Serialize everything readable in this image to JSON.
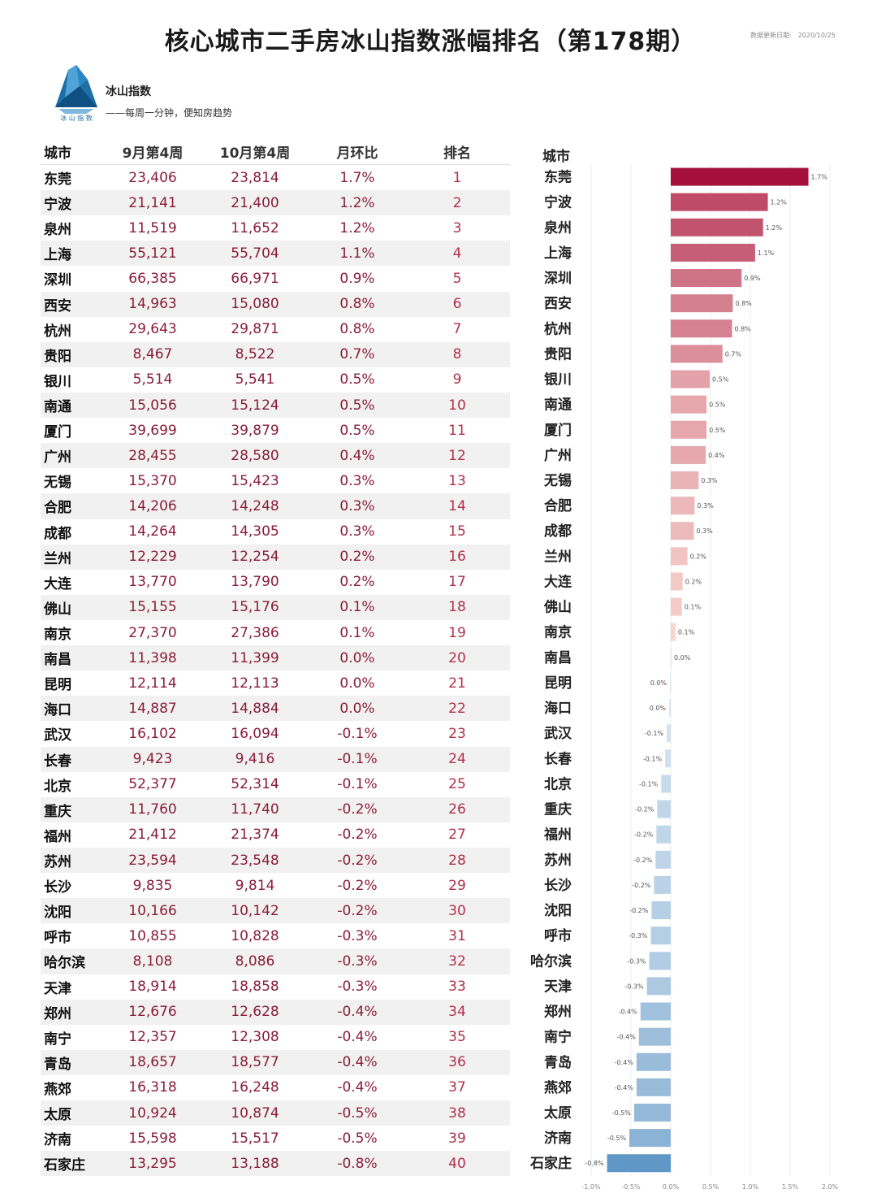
{
  "title": "核心城市二手房冰山指数涨幅排名（第178期）",
  "update_label": "数据更新日期:",
  "update_date": "2020/10/25",
  "brand": {
    "logo_text": "冰 山 指 数",
    "name": "冰山指数",
    "slogan": "——每周一分钟，便知房趋势"
  },
  "table": {
    "headers": [
      "城市",
      "9月第4周",
      "10月第4周",
      "月环比",
      "排名"
    ],
    "rows": [
      [
        "东莞",
        "23,406",
        "23,814",
        "1.7%",
        "1"
      ],
      [
        "宁波",
        "21,141",
        "21,400",
        "1.2%",
        "2"
      ],
      [
        "泉州",
        "11,519",
        "11,652",
        "1.2%",
        "3"
      ],
      [
        "上海",
        "55,121",
        "55,704",
        "1.1%",
        "4"
      ],
      [
        "深圳",
        "66,385",
        "66,971",
        "0.9%",
        "5"
      ],
      [
        "西安",
        "14,963",
        "15,080",
        "0.8%",
        "6"
      ],
      [
        "杭州",
        "29,643",
        "29,871",
        "0.8%",
        "7"
      ],
      [
        "贵阳",
        "8,467",
        "8,522",
        "0.7%",
        "8"
      ],
      [
        "银川",
        "5,514",
        "5,541",
        "0.5%",
        "9"
      ],
      [
        "南通",
        "15,056",
        "15,124",
        "0.5%",
        "10"
      ],
      [
        "厦门",
        "39,699",
        "39,879",
        "0.5%",
        "11"
      ],
      [
        "广州",
        "28,455",
        "28,580",
        "0.4%",
        "12"
      ],
      [
        "无锡",
        "15,370",
        "15,423",
        "0.3%",
        "13"
      ],
      [
        "合肥",
        "14,206",
        "14,248",
        "0.3%",
        "14"
      ],
      [
        "成都",
        "14,264",
        "14,305",
        "0.3%",
        "15"
      ],
      [
        "兰州",
        "12,229",
        "12,254",
        "0.2%",
        "16"
      ],
      [
        "大连",
        "13,770",
        "13,790",
        "0.2%",
        "17"
      ],
      [
        "佛山",
        "15,155",
        "15,176",
        "0.1%",
        "18"
      ],
      [
        "南京",
        "27,370",
        "27,386",
        "0.1%",
        "19"
      ],
      [
        "南昌",
        "11,398",
        "11,399",
        "0.0%",
        "20"
      ],
      [
        "昆明",
        "12,114",
        "12,113",
        "0.0%",
        "21"
      ],
      [
        "海口",
        "14,887",
        "14,884",
        "0.0%",
        "22"
      ],
      [
        "武汉",
        "16,102",
        "16,094",
        "-0.1%",
        "23"
      ],
      [
        "长春",
        "9,423",
        "9,416",
        "-0.1%",
        "24"
      ],
      [
        "北京",
        "52,377",
        "52,314",
        "-0.1%",
        "25"
      ],
      [
        "重庆",
        "11,760",
        "11,740",
        "-0.2%",
        "26"
      ],
      [
        "福州",
        "21,412",
        "21,374",
        "-0.2%",
        "27"
      ],
      [
        "苏州",
        "23,594",
        "23,548",
        "-0.2%",
        "28"
      ],
      [
        "长沙",
        "9,835",
        "9,814",
        "-0.2%",
        "29"
      ],
      [
        "沈阳",
        "10,166",
        "10,142",
        "-0.2%",
        "30"
      ],
      [
        "呼市",
        "10,855",
        "10,828",
        "-0.3%",
        "31"
      ],
      [
        "哈尔滨",
        "8,108",
        "8,086",
        "-0.3%",
        "32"
      ],
      [
        "天津",
        "18,914",
        "18,858",
        "-0.3%",
        "33"
      ],
      [
        "郑州",
        "12,676",
        "12,628",
        "-0.4%",
        "34"
      ],
      [
        "南宁",
        "12,357",
        "12,308",
        "-0.4%",
        "35"
      ],
      [
        "青岛",
        "18,657",
        "18,577",
        "-0.4%",
        "36"
      ],
      [
        "燕郊",
        "16,318",
        "16,248",
        "-0.4%",
        "37"
      ],
      [
        "太原",
        "10,924",
        "10,874",
        "-0.5%",
        "38"
      ],
      [
        "济南",
        "15,598",
        "15,517",
        "-0.5%",
        "39"
      ],
      [
        "石家庄",
        "13,295",
        "13,188",
        "-0.8%",
        "40"
      ]
    ]
  },
  "chart_data": {
    "type": "bar",
    "orientation": "horizontal",
    "category_header": "城市",
    "categories": [
      "东莞",
      "宁波",
      "泉州",
      "上海",
      "深圳",
      "西安",
      "杭州",
      "贵阳",
      "银川",
      "南通",
      "厦门",
      "广州",
      "无锡",
      "合肥",
      "成都",
      "兰州",
      "大连",
      "佛山",
      "南京",
      "南昌",
      "昆明",
      "海口",
      "武汉",
      "长春",
      "北京",
      "重庆",
      "福州",
      "苏州",
      "长沙",
      "沈阳",
      "呼市",
      "哈尔滨",
      "天津",
      "郑州",
      "南宁",
      "青岛",
      "燕郊",
      "太原",
      "济南",
      "石家庄"
    ],
    "values": [
      1.73,
      1.22,
      1.16,
      1.06,
      0.89,
      0.78,
      0.77,
      0.65,
      0.49,
      0.45,
      0.45,
      0.44,
      0.35,
      0.3,
      0.29,
      0.21,
      0.15,
      0.14,
      0.06,
      0.01,
      -0.01,
      -0.02,
      -0.05,
      -0.07,
      -0.12,
      -0.17,
      -0.18,
      -0.19,
      -0.21,
      -0.24,
      -0.25,
      -0.27,
      -0.3,
      -0.38,
      -0.4,
      -0.43,
      -0.43,
      -0.46,
      -0.52,
      -0.8
    ],
    "data_labels": [
      "1.7%",
      "1.2%",
      "1.2%",
      "1.1%",
      "0.9%",
      "0.8%",
      "0.8%",
      "0.7%",
      "0.5%",
      "0.5%",
      "0.5%",
      "0.4%",
      "0.3%",
      "0.3%",
      "0.3%",
      "0.2%",
      "0.2%",
      "0.1%",
      "0.1%",
      "0.0%",
      "0.0%",
      "0.0%",
      "-0.1%",
      "-0.1%",
      "-0.1%",
      "-0.2%",
      "-0.2%",
      "-0.2%",
      "-0.2%",
      "-0.2%",
      "-0.3%",
      "-0.3%",
      "-0.3%",
      "-0.4%",
      "-0.4%",
      "-0.4%",
      "-0.4%",
      "-0.5%",
      "-0.5%",
      "-0.8%"
    ],
    "xlim": [
      -1.0,
      2.0
    ],
    "xticks": [
      "-1.0%",
      "-0.5%",
      "0.0%",
      "0.5%",
      "1.0%",
      "1.5%",
      "2.0%"
    ],
    "grid": true,
    "colors": {
      "max_positive": "#a50f3c",
      "min_positive": "#fcdcd4",
      "min_negative": "#dbe7f2",
      "max_negative": "#5f97c6",
      "grid": "#ececec",
      "label": "#555555",
      "category": "#222222"
    }
  }
}
